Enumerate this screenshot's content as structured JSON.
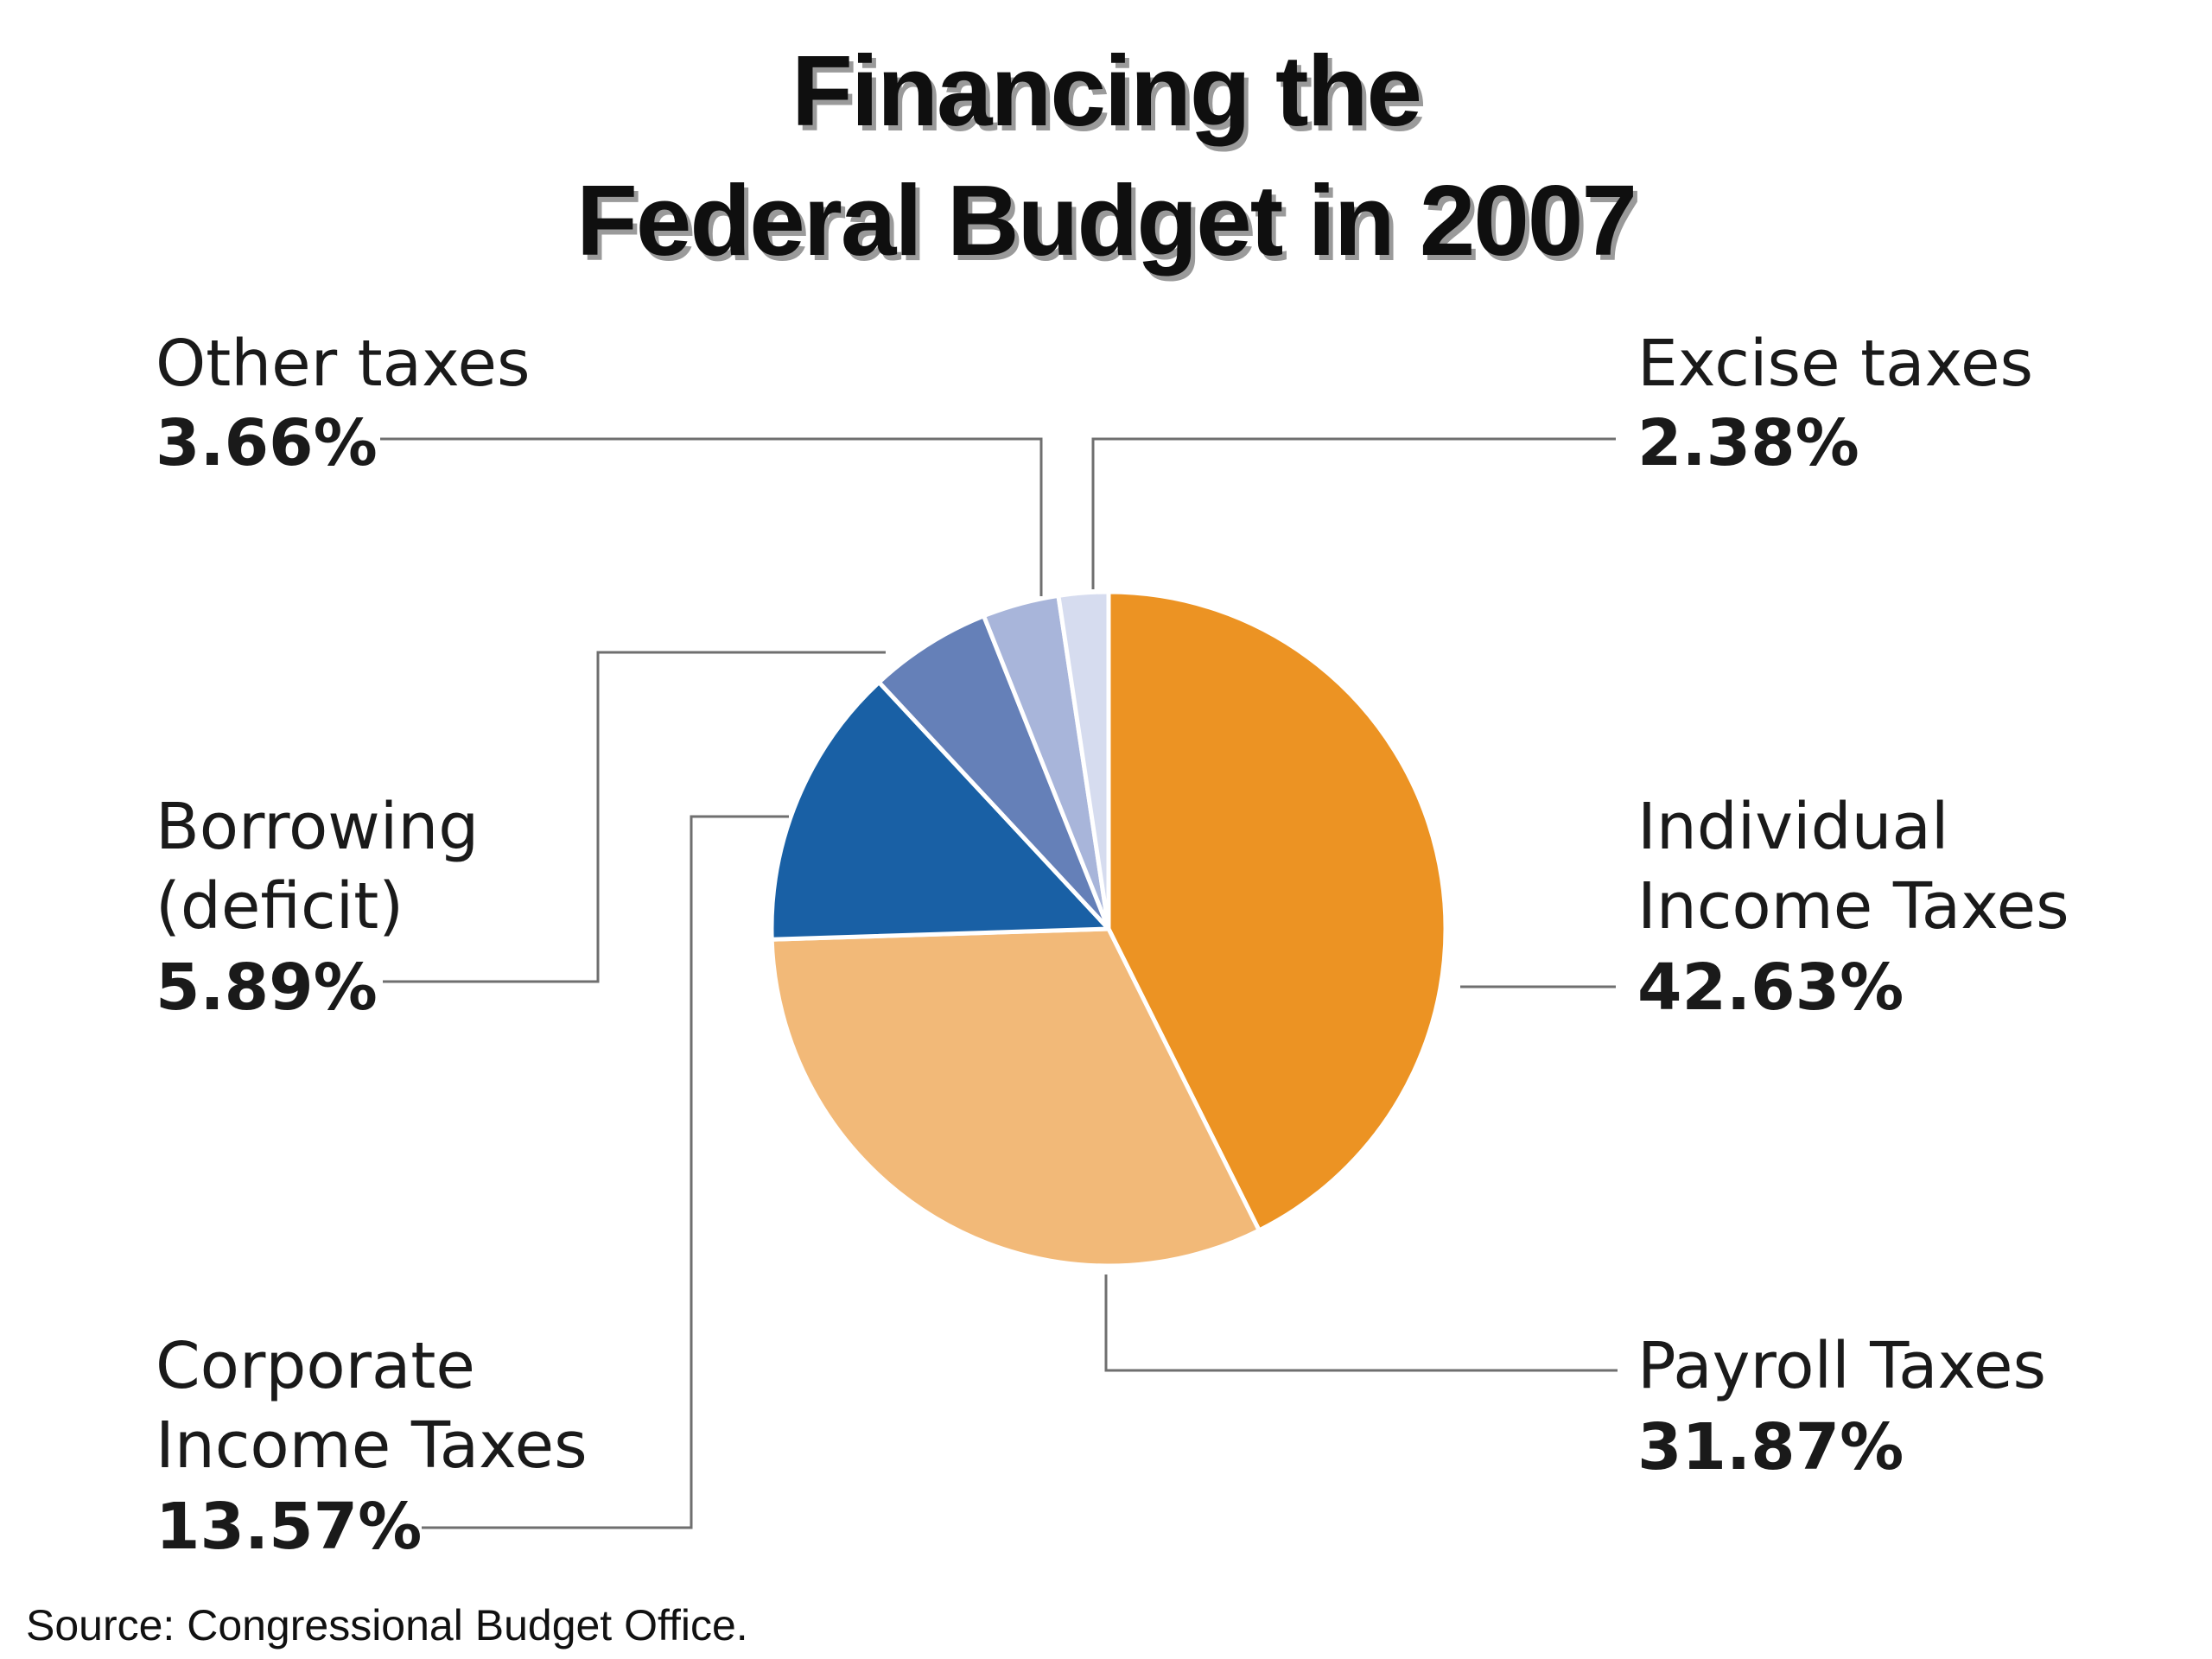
{
  "chart_data": {
    "type": "pie",
    "title_lines": [
      "Financing the",
      "Federal Budget in 2007"
    ],
    "unit": "%",
    "start_angle_deg": 0,
    "direction": "clockwise",
    "slices": [
      {
        "name_lines": [
          "Individual",
          "Income Taxes"
        ],
        "value": 42.63,
        "value_text": "42.63%",
        "color": "#ec9323"
      },
      {
        "name_lines": [
          "Payroll Taxes"
        ],
        "value": 31.87,
        "value_text": "31.87%",
        "color": "#f2b978"
      },
      {
        "name_lines": [
          "Corporate",
          "Income Taxes"
        ],
        "value": 13.57,
        "value_text": "13.57%",
        "color": "#1960a5"
      },
      {
        "name_lines": [
          "Borrowing",
          "(deficit)"
        ],
        "value": 5.89,
        "value_text": "5.89%",
        "color": "#6580b8"
      },
      {
        "name_lines": [
          "Other taxes"
        ],
        "value": 3.66,
        "value_text": "3.66%",
        "color": "#a8b5da"
      },
      {
        "name_lines": [
          "Excise taxes"
        ],
        "value": 2.38,
        "value_text": "2.38%",
        "color": "#d6dcef"
      }
    ],
    "source": "Source: Congressional Budget Office."
  }
}
